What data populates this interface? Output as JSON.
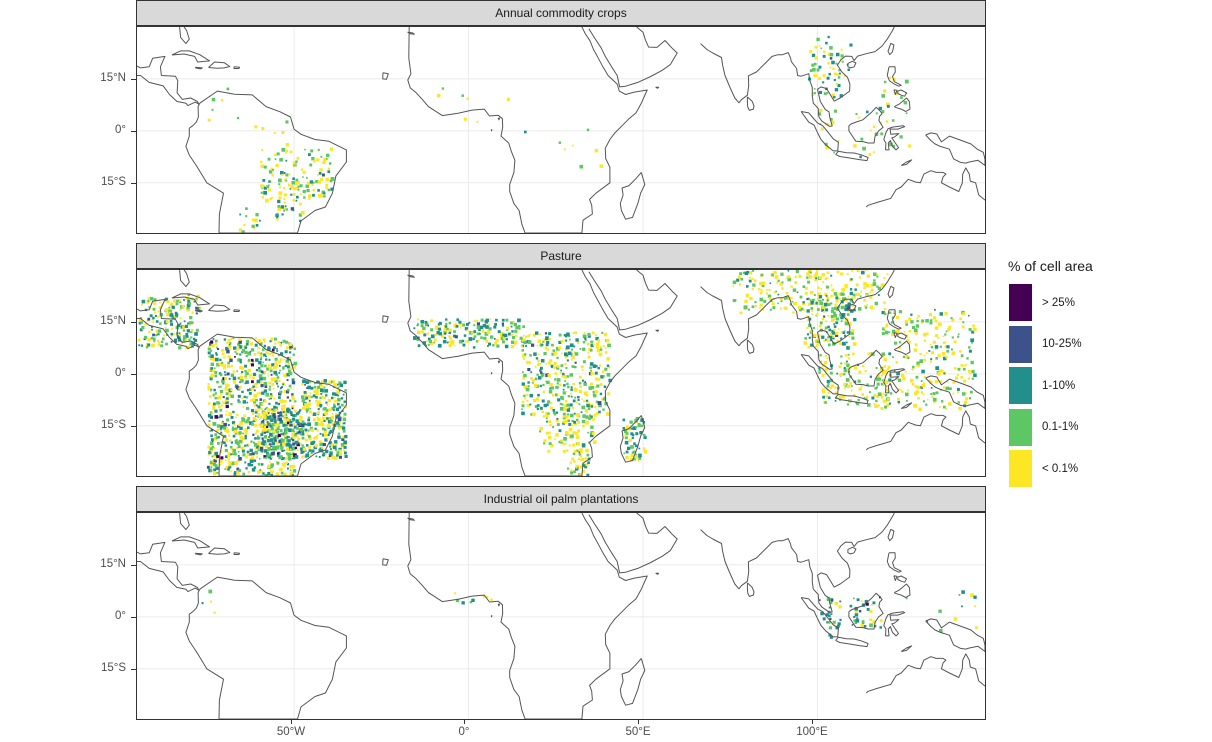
{
  "panels": [
    {
      "title": "Annual commodity crops",
      "layer": "crops"
    },
    {
      "title": "Pasture",
      "layer": "pasture"
    },
    {
      "title": "Industrial oil palm plantations",
      "layer": "palm"
    }
  ],
  "y_axis_labels": [
    "15°N",
    "0°",
    "15°S"
  ],
  "x_axis_labels": [
    "50°W",
    "0°",
    "50°E",
    "100°E"
  ],
  "legend": {
    "title": "% of cell area",
    "items": [
      {
        "label": "> 25%",
        "color": "#440154"
      },
      {
        "label": "10-25%",
        "color": "#3b528b"
      },
      {
        "label": "1-10%",
        "color": "#21908c"
      },
      {
        "label": "0.1-1%",
        "color": "#5dc863"
      },
      {
        "label": "< 0.1%",
        "color": "#fde725"
      }
    ]
  },
  "colors": {
    "coast": "#555555",
    "grid": "#ebebeb",
    "strip_bg": "#d9d9d9"
  }
}
